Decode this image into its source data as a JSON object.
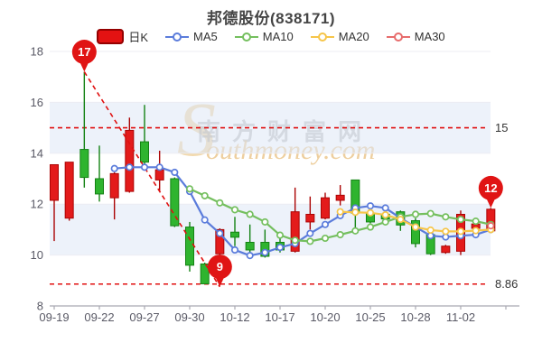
{
  "title": "邦德股份(838171)",
  "legend": [
    {
      "label": "日K",
      "type": "candle",
      "color": "#e31212",
      "border": "#940000"
    },
    {
      "label": "MA5",
      "type": "line",
      "color": "#5b7cdb"
    },
    {
      "label": "MA10",
      "type": "line",
      "color": "#74bf5e"
    },
    {
      "label": "MA20",
      "type": "line",
      "color": "#f6c549"
    },
    {
      "label": "MA30",
      "type": "line",
      "color": "#e76c6c"
    }
  ],
  "watermark": {
    "s": "S",
    "cn": "南方财富网",
    "en": "outhmoney.com"
  },
  "chart_data": {
    "type": "candlestick+lines",
    "title": "邦德股份(838171)",
    "xlabel": "",
    "ylabel": "",
    "ylim": [
      8,
      18
    ],
    "y_ticks": [
      8,
      10,
      12,
      14,
      16,
      18
    ],
    "shaded_bands": [
      [
        14,
        16
      ],
      [
        10,
        12
      ]
    ],
    "x_tick_indices": [
      0,
      3,
      6,
      9,
      12,
      15,
      18,
      21,
      24,
      27
    ],
    "x_tick_labels": [
      "09-19",
      "09-22",
      "09-27",
      "09-30",
      "10-12",
      "10-17",
      "10-20",
      "10-25",
      "10-28",
      "11-02"
    ],
    "candles": [
      {
        "date": "09-19",
        "o": 12.15,
        "h": 13.55,
        "l": 10.55,
        "c": 13.55
      },
      {
        "date": "09-20",
        "o": 11.45,
        "h": 13.65,
        "l": 11.35,
        "c": 13.65
      },
      {
        "date": "09-21",
        "o": 14.15,
        "h": 17.2,
        "l": 12.65,
        "c": 13.05
      },
      {
        "date": "09-22",
        "o": 13.0,
        "h": 14.3,
        "l": 12.1,
        "c": 12.4
      },
      {
        "date": "09-23",
        "o": 12.25,
        "h": 13.25,
        "l": 11.4,
        "c": 13.2
      },
      {
        "date": "09-26",
        "o": 12.5,
        "h": 15.4,
        "l": 12.45,
        "c": 14.9
      },
      {
        "date": "09-27",
        "o": 14.45,
        "h": 15.9,
        "l": 13.55,
        "c": 13.65
      },
      {
        "date": "09-28",
        "o": 12.95,
        "h": 14.1,
        "l": 12.5,
        "c": 13.35
      },
      {
        "date": "09-29",
        "o": 13.0,
        "h": 13.05,
        "l": 11.1,
        "c": 11.15
      },
      {
        "date": "09-30",
        "o": 11.1,
        "h": 11.3,
        "l": 9.35,
        "c": 9.6
      },
      {
        "date": "10-10",
        "o": 9.65,
        "h": 9.7,
        "l": 8.86,
        "c": 8.87
      },
      {
        "date": "10-11",
        "o": 10.05,
        "h": 11.05,
        "l": 8.9,
        "c": 11.0
      },
      {
        "date": "10-12",
        "o": 10.9,
        "h": 11.5,
        "l": 10.35,
        "c": 10.7
      },
      {
        "date": "10-13",
        "o": 10.5,
        "h": 11.2,
        "l": 10.0,
        "c": 10.2
      },
      {
        "date": "10-14",
        "o": 10.5,
        "h": 11.0,
        "l": 9.9,
        "c": 9.95
      },
      {
        "date": "10-17",
        "o": 10.5,
        "h": 10.8,
        "l": 10.1,
        "c": 10.2
      },
      {
        "date": "10-18",
        "o": 10.15,
        "h": 12.65,
        "l": 10.1,
        "c": 11.7
      },
      {
        "date": "10-19",
        "o": 11.3,
        "h": 12.3,
        "l": 11.0,
        "c": 11.6
      },
      {
        "date": "10-20",
        "o": 11.45,
        "h": 12.45,
        "l": 11.4,
        "c": 12.25
      },
      {
        "date": "10-21",
        "o": 12.15,
        "h": 12.75,
        "l": 11.95,
        "c": 12.35
      },
      {
        "date": "10-24",
        "o": 12.95,
        "h": 12.95,
        "l": 10.95,
        "c": 11.65
      },
      {
        "date": "10-25",
        "o": 11.65,
        "h": 11.75,
        "l": 11.25,
        "c": 11.3
      },
      {
        "date": "10-26",
        "o": 11.6,
        "h": 11.7,
        "l": 11.35,
        "c": 11.42
      },
      {
        "date": "10-27",
        "o": 11.7,
        "h": 11.75,
        "l": 10.95,
        "c": 11.18
      },
      {
        "date": "10-28",
        "o": 11.35,
        "h": 11.45,
        "l": 10.3,
        "c": 10.45
      },
      {
        "date": "10-31",
        "o": 10.8,
        "h": 10.85,
        "l": 10.0,
        "c": 10.05
      },
      {
        "date": "11-01",
        "o": 10.1,
        "h": 10.4,
        "l": 10.05,
        "c": 10.35
      },
      {
        "date": "11-02",
        "o": 10.15,
        "h": 11.75,
        "l": 10.0,
        "c": 11.6
      },
      {
        "date": "11-03",
        "o": 11.05,
        "h": 11.45,
        "l": 11.0,
        "c": 11.22
      },
      {
        "date": "11-04",
        "o": 10.95,
        "h": 11.85,
        "l": 10.9,
        "c": 11.8
      }
    ],
    "series": [
      {
        "name": "MA5",
        "color": "#5b7cdb",
        "start_index": 4,
        "values": [
          13.4,
          13.45,
          13.45,
          13.45,
          13.25,
          12.5,
          11.38,
          10.85,
          10.2,
          9.98,
          10.1,
          10.3,
          10.45,
          10.85,
          11.2,
          11.55,
          11.85,
          11.93,
          11.85,
          11.45,
          11.1,
          10.76,
          10.71,
          10.76,
          10.8,
          11.0
        ]
      },
      {
        "name": "MA10",
        "color": "#74bf5e",
        "start_index": 9,
        "values": [
          12.6,
          12.33,
          12.05,
          11.78,
          11.6,
          11.3,
          10.78,
          10.58,
          10.54,
          10.66,
          10.8,
          10.95,
          11.1,
          11.3,
          11.5,
          11.6,
          11.63,
          11.5,
          11.4,
          11.33,
          11.2
        ]
      },
      {
        "name": "MA20",
        "color": "#f6c549",
        "start_index": 19,
        "values": [
          11.7,
          11.68,
          11.66,
          11.58,
          11.4,
          11.1,
          10.98,
          10.93,
          10.93,
          10.96,
          11.0
        ]
      },
      {
        "name": "MA30",
        "color": "#e76c6c",
        "start_index": 29,
        "values": [
          11.15
        ]
      }
    ],
    "ref_lines": [
      {
        "value": 15,
        "label": "15"
      },
      {
        "value": 8.86,
        "label": "8.86"
      }
    ],
    "trend_line": {
      "from_index": 2,
      "from_value": 17.2,
      "to_index": 11,
      "to_value": 8.75
    },
    "pins": [
      {
        "label": "17",
        "index": 2,
        "attach": "high"
      },
      {
        "label": "9",
        "index": 11,
        "attach": "low"
      },
      {
        "label": "12",
        "index": 29,
        "attach": "high"
      }
    ],
    "colors": {
      "up": "#e31b1b",
      "up_border": "#ab0404",
      "down": "#2fb42f",
      "down_border": "#148214",
      "ref": "#e01010",
      "pin": "#e01414",
      "grid": "#ececf3",
      "band": "rgba(223,231,246,0.55)",
      "axis": "#a9a9b2",
      "tick_text": "#5a5a66"
    }
  }
}
